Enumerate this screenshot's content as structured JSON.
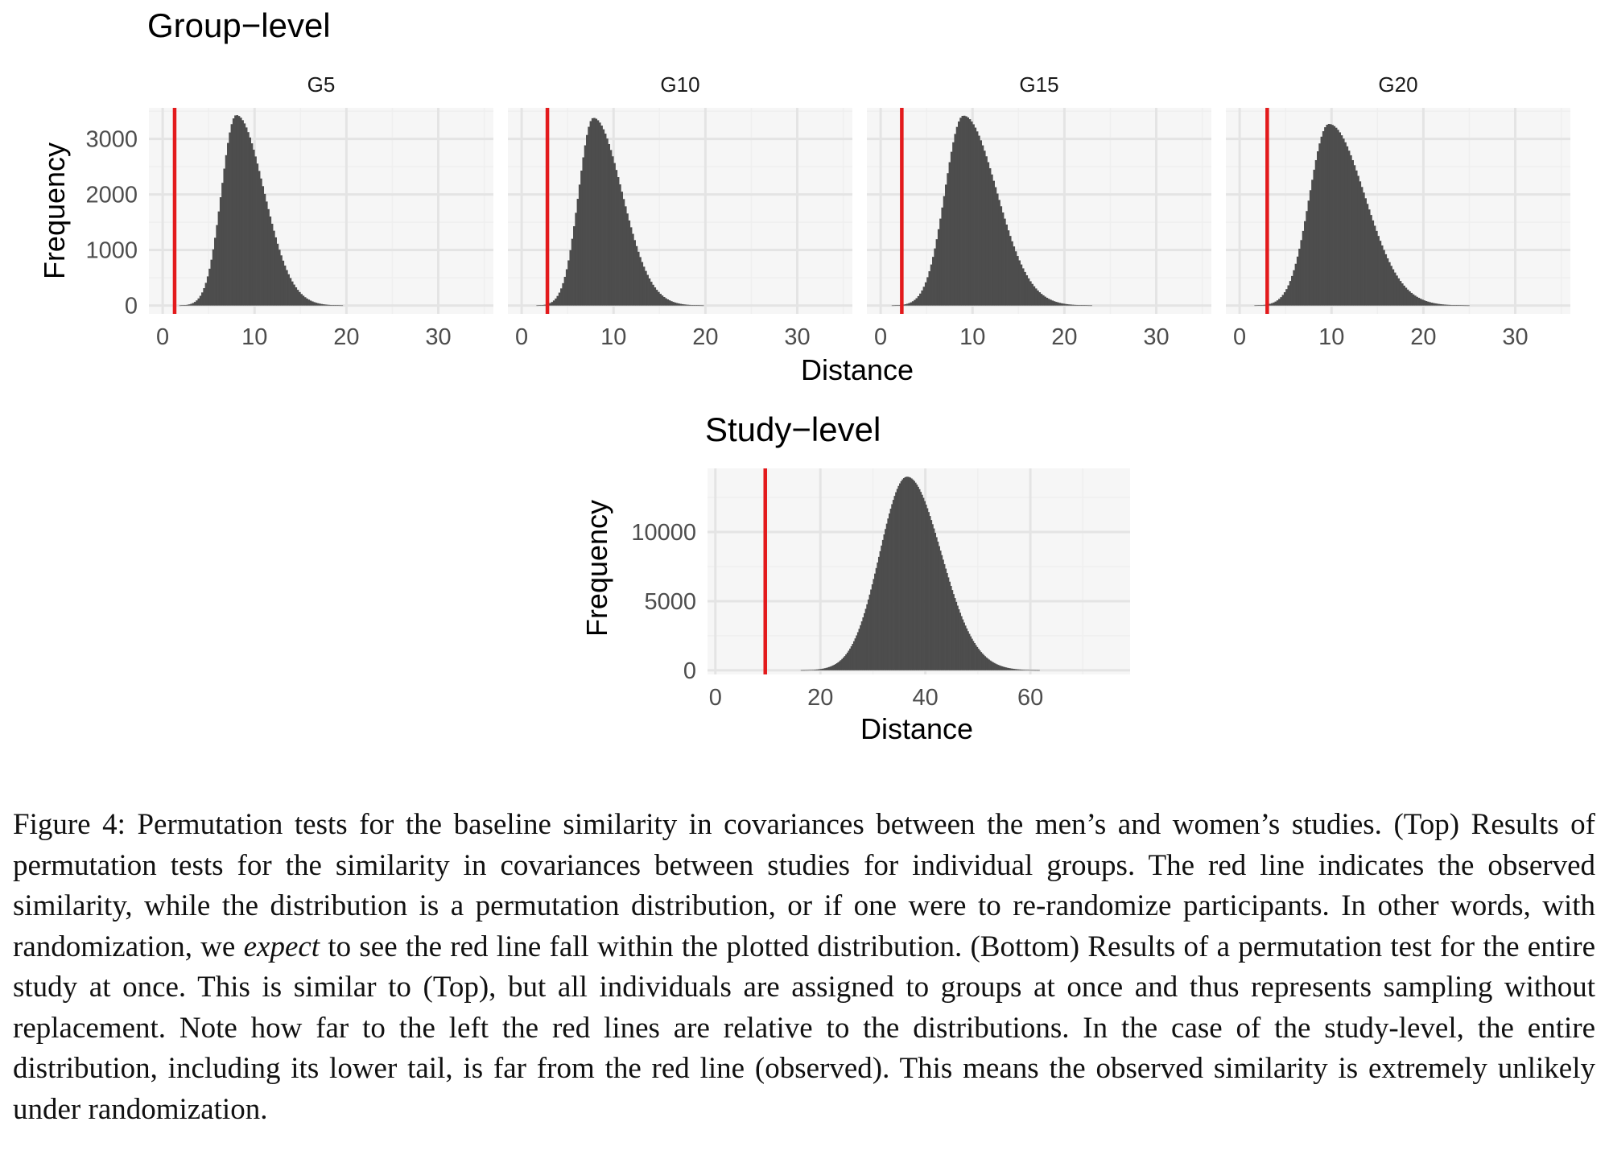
{
  "figure": {
    "group": {
      "title": "Group−level",
      "ylabel": "Frequency",
      "xlabel": "Distance",
      "panels": [
        {
          "strip": "G5"
        },
        {
          "strip": "G10"
        },
        {
          "strip": "G15"
        },
        {
          "strip": "G20"
        }
      ]
    },
    "study": {
      "title": "Study−level",
      "ylabel": "Frequency",
      "xlabel": "Distance"
    }
  },
  "chart_data": [
    {
      "type": "bar",
      "subtype": "histogram",
      "facets": [
        {
          "strip": "G5",
          "mode": 8.0,
          "sd_left": 1.6,
          "sd_right": 3.0,
          "peak": 3430,
          "observed": 1.3
        },
        {
          "strip": "G10",
          "mode": 7.8,
          "sd_left": 1.6,
          "sd_right": 3.1,
          "peak": 3380,
          "observed": 2.8
        },
        {
          "strip": "G15",
          "mode": 9.0,
          "sd_left": 2.0,
          "sd_right": 3.6,
          "peak": 3420,
          "observed": 2.3
        },
        {
          "strip": "G20",
          "mode": 9.7,
          "sd_left": 2.1,
          "sd_right": 3.9,
          "peak": 3270,
          "observed": 3.0
        }
      ],
      "bin_width": 0.2,
      "x_range": [
        0.0,
        30.0
      ],
      "xlim": [
        -1.5,
        36.0
      ],
      "ylim": [
        -150,
        3560
      ],
      "x_ticks": [
        0,
        10,
        20,
        30
      ],
      "y_ticks": [
        0,
        1000,
        2000,
        3000
      ],
      "observed_color": "#e31a1c",
      "bar_color": "#4d4d4d",
      "panel_bg": "#f6f6f6",
      "grid_color": "#e4e4e4",
      "grid": true
    },
    {
      "type": "bar",
      "subtype": "histogram",
      "mode": 36.5,
      "sd_left": 5.2,
      "sd_right": 6.5,
      "peak": 14000,
      "observed": 9.5,
      "bin_width": 0.25,
      "x_range": [
        15.0,
        75.0
      ],
      "xlim": [
        -1.5,
        79.0
      ],
      "ylim": [
        -300,
        14600
      ],
      "x_ticks": [
        0,
        20,
        40,
        60
      ],
      "y_ticks": [
        0,
        5000,
        10000
      ],
      "observed_color": "#e31a1c",
      "bar_color": "#4d4d4d",
      "panel_bg": "#f6f6f6",
      "grid_color": "#e4e4e4",
      "grid": true
    }
  ],
  "caption": {
    "label": "Figure 4:",
    "part1": "Permutation tests for the baseline similarity in covariances between the men’s and women’s studies. (Top) Results of permutation tests for the similarity in covariances between studies for individual groups. The red line indicates the observed similarity, while the distribution is a permutation distribution, or if one were to re-randomize participants. In other words, with randomization, we",
    "emph": "expect",
    "part2": "to see the red line fall within the plotted distribution. (Bottom) Results of a permutation test for the entire study at once. This is similar to (Top), but all individuals are assigned to groups at once and thus represents sampling without replacement. Note how far to the left the red lines are relative to the distributions. In the case of the study-level, the entire distribution, including its lower tail, is far from the red line (observed). This means the observed similarity is extremely unlikely under randomization."
  }
}
